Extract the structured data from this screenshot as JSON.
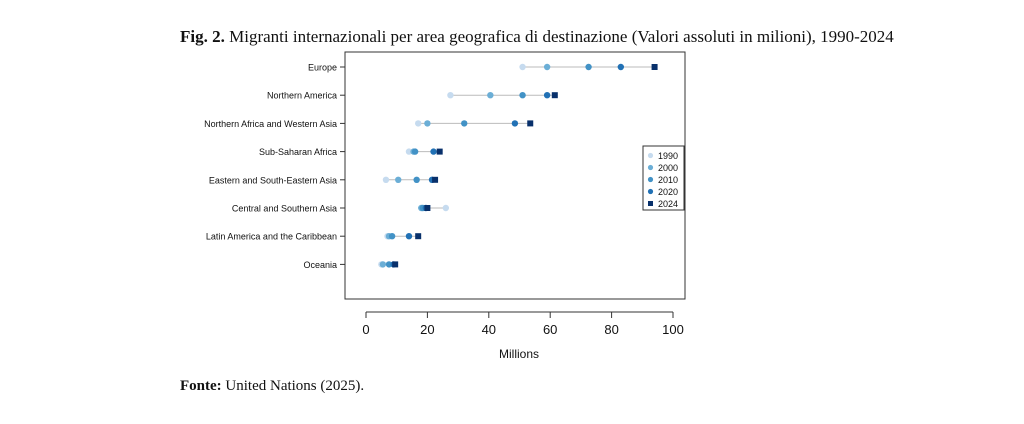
{
  "figure": {
    "label": "Fig. 2.",
    "title": "Migranti internazionali per area geografica di destinazione (Valori assoluti in milioni), 1990-2024"
  },
  "source": {
    "label": "Fonte:",
    "text": "United Nations (2025)."
  },
  "chart_data": {
    "type": "scatter",
    "categories": [
      "Europe",
      "Northern America",
      "Northern Africa and Western Asia",
      "Sub-Saharan Africa",
      "Eastern and South-Eastern Asia",
      "Central and Southern Asia",
      "Latin America and the Caribbean",
      "Oceania"
    ],
    "series": [
      {
        "name": "1990",
        "color": "#c6dbef",
        "marker": "circle",
        "values": [
          51,
          27.5,
          17,
          14,
          6.5,
          26,
          7,
          5
        ]
      },
      {
        "name": "2000",
        "color": "#6baed6",
        "marker": "circle",
        "values": [
          59,
          40.5,
          20,
          15.5,
          10.5,
          18,
          7.5,
          5.5
        ]
      },
      {
        "name": "2010",
        "color": "#4292c6",
        "marker": "circle",
        "values": [
          72.5,
          51,
          32,
          16,
          16.5,
          18.5,
          8.5,
          7.5
        ]
      },
      {
        "name": "2020",
        "color": "#2171b5",
        "marker": "circle",
        "values": [
          83,
          59,
          48.5,
          22,
          21.5,
          19.5,
          14,
          9
        ]
      },
      {
        "name": "2024",
        "color": "#08306b",
        "marker": "square",
        "values": [
          94,
          61.5,
          53.5,
          24,
          22.5,
          20,
          17,
          9.5
        ]
      }
    ],
    "xlabel": "Millions",
    "ylabel": "",
    "xlim": [
      0,
      100
    ],
    "xticks": [
      0,
      20,
      40,
      60,
      80,
      100
    ],
    "connector_color": "#bbbbbb",
    "grid": false,
    "legend_placement": "right"
  }
}
